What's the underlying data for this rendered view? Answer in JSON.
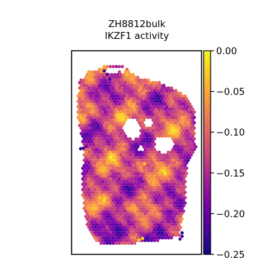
{
  "chart_data": {
    "type": "heatmap",
    "title": "ZH8812bulk",
    "subtitle": "IKZF1 activity",
    "xlabel": "",
    "ylabel": "",
    "grid": false,
    "colorbar": {
      "colormap": "plasma",
      "min": -0.25,
      "max": 0.0,
      "ticks": [
        0.0,
        -0.05,
        -0.1,
        -0.15,
        -0.2,
        -0.25
      ],
      "tick_labels": [
        "0.00",
        "−0.05",
        "−0.10",
        "−0.15",
        "−0.20",
        "−0.25"
      ]
    }
  }
}
